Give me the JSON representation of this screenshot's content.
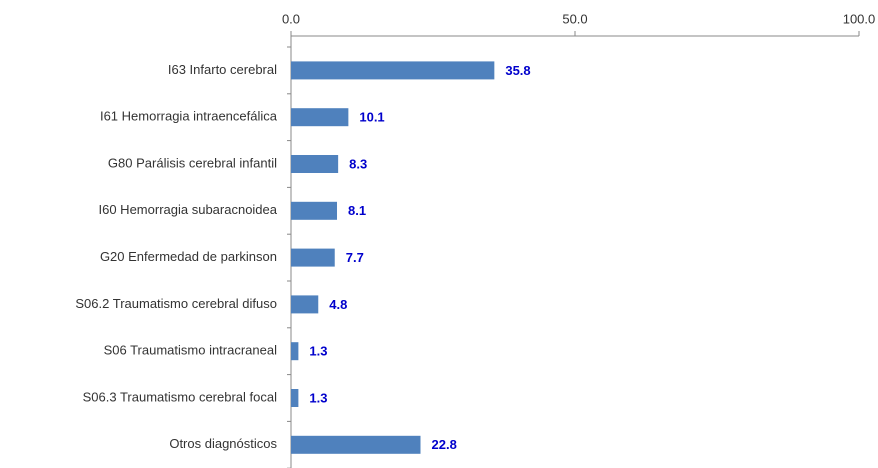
{
  "chart_data": {
    "type": "bar",
    "orientation": "horizontal",
    "categories": [
      "I63  Infarto cerebral",
      "I61  Hemorragia intraencefálica",
      "G80  Parálisis cerebral infantil",
      "I60  Hemorragia subaracnoidea",
      "G20  Enfermedad de parkinson",
      "S06.2  Traumatismo cerebral difuso",
      "S06  Traumatismo intracraneal",
      "S06.3  Traumatismo cerebral focal",
      "Otros diagnósticos"
    ],
    "values": [
      35.8,
      10.1,
      8.3,
      8.1,
      7.7,
      4.8,
      1.3,
      1.3,
      22.8
    ],
    "color": "#4f81bd",
    "xlim": [
      0,
      100
    ],
    "xticks": [
      {
        "value": 0,
        "label": "0.0"
      },
      {
        "value": 50,
        "label": "50.0"
      },
      {
        "value": 100,
        "label": "100.0"
      }
    ]
  }
}
